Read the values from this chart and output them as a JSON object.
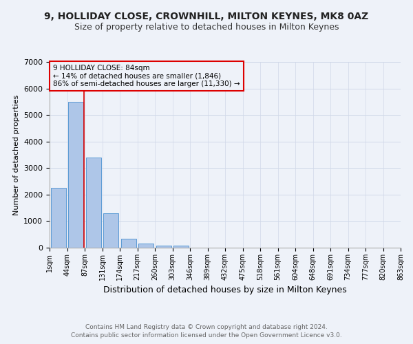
{
  "title": "9, HOLLIDAY CLOSE, CROWNHILL, MILTON KEYNES, MK8 0AZ",
  "subtitle": "Size of property relative to detached houses in Milton Keynes",
  "xlabel": "Distribution of detached houses by size in Milton Keynes",
  "ylabel": "Number of detached properties",
  "bin_labels": [
    "1sqm",
    "44sqm",
    "87sqm",
    "131sqm",
    "174sqm",
    "217sqm",
    "260sqm",
    "303sqm",
    "346sqm",
    "389sqm",
    "432sqm",
    "475sqm",
    "518sqm",
    "561sqm",
    "604sqm",
    "648sqm",
    "691sqm",
    "734sqm",
    "777sqm",
    "820sqm",
    "863sqm"
  ],
  "bar_values": [
    2250,
    5500,
    3400,
    1300,
    350,
    150,
    70,
    70,
    0,
    0,
    0,
    0,
    0,
    0,
    0,
    0,
    0,
    0,
    0,
    0
  ],
  "bar_color": "#aec6e8",
  "bar_edge_color": "#5b9bd5",
  "grid_color": "#d0d8e8",
  "bg_color": "#eef2f9",
  "ylim": [
    0,
    7000
  ],
  "yticks": [
    0,
    1000,
    2000,
    3000,
    4000,
    5000,
    6000,
    7000
  ],
  "red_line_x": 1.45,
  "annotation_text": "9 HOLLIDAY CLOSE: 84sqm\n← 14% of detached houses are smaller (1,846)\n86% of semi-detached houses are larger (11,330) →",
  "annotation_box_color": "#dd0000",
  "red_line_color": "#dd0000",
  "footer_line1": "Contains HM Land Registry data © Crown copyright and database right 2024.",
  "footer_line2": "Contains public sector information licensed under the Open Government Licence v3.0.",
  "title_fontsize": 10,
  "subtitle_fontsize": 9,
  "annotation_fontsize": 7.5,
  "tick_fontsize": 7,
  "ylabel_fontsize": 8,
  "xlabel_fontsize": 9,
  "footer_fontsize": 6.5
}
